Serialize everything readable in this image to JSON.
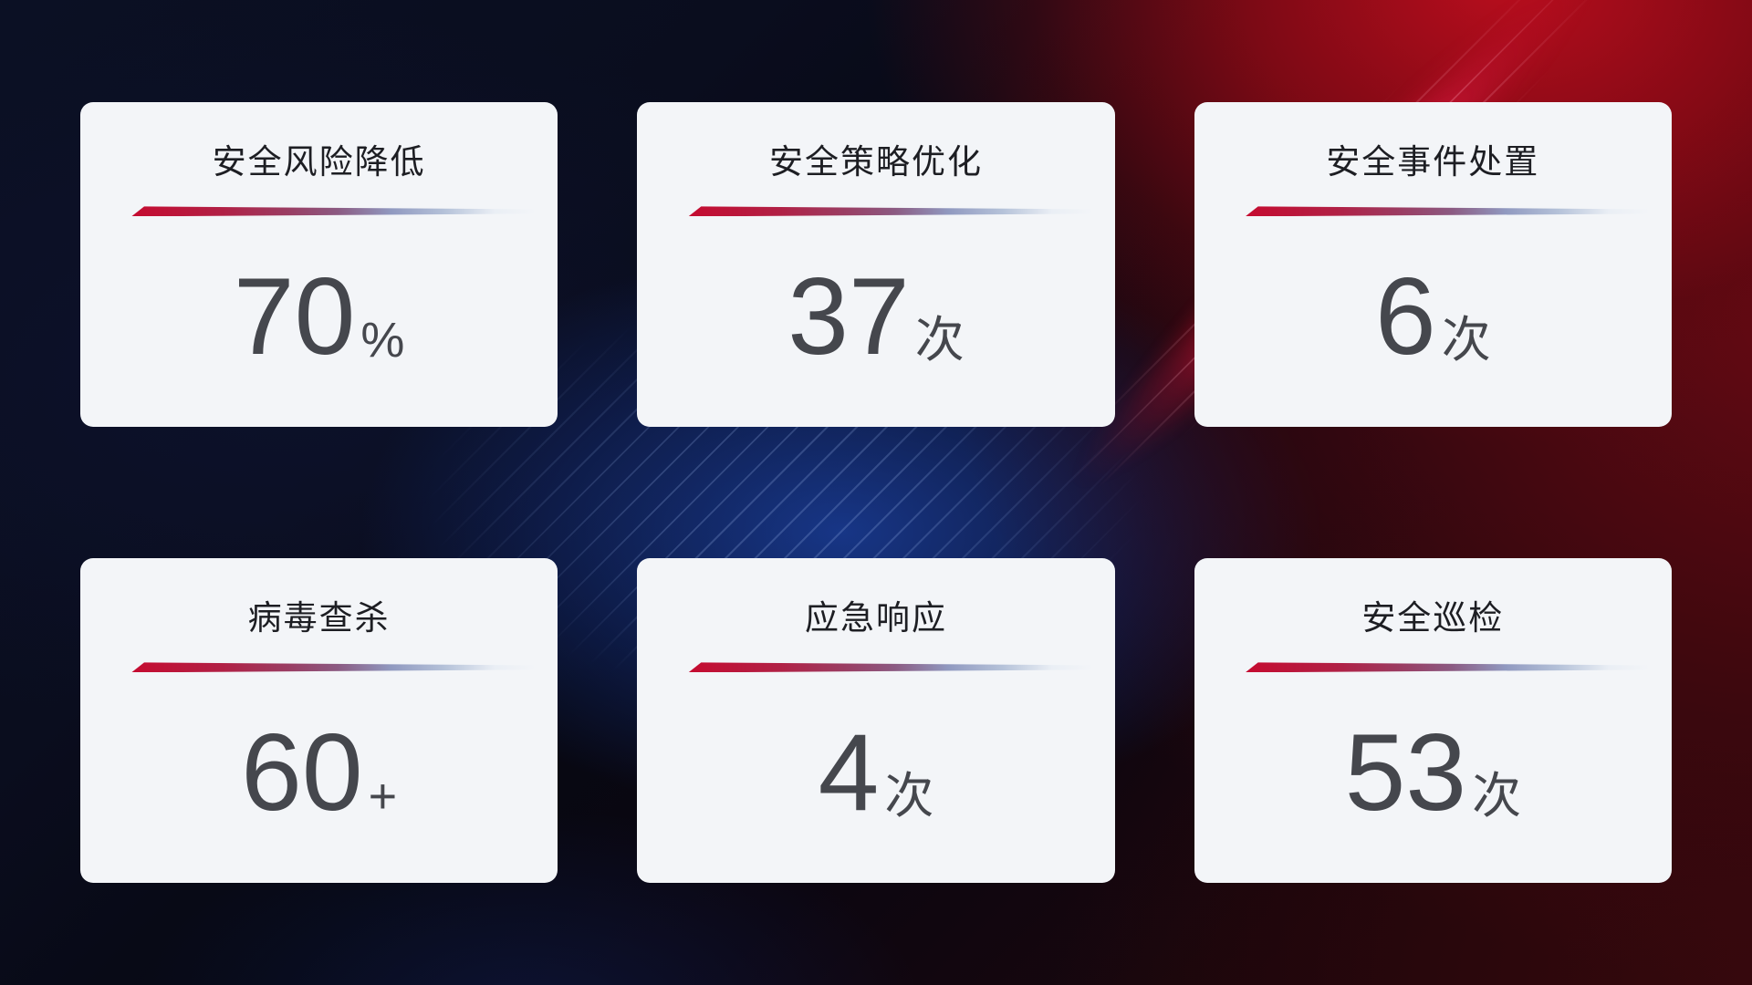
{
  "cards": [
    {
      "title": "安全风险降低",
      "value": "70",
      "unit": "%"
    },
    {
      "title": "安全策略优化",
      "value": "37",
      "unit": "次"
    },
    {
      "title": "安全事件处置",
      "value": "6",
      "unit": "次"
    },
    {
      "title": "病毒查杀",
      "value": "60",
      "unit": "+"
    },
    {
      "title": "应急响应",
      "value": "4",
      "unit": "次"
    },
    {
      "title": "安全巡检",
      "value": "53",
      "unit": "次"
    }
  ],
  "colors": {
    "card_background": "#f3f5f8",
    "title_text": "#1d1e23",
    "value_text": "#45474d",
    "divider_start": "#c50b30",
    "divider_end": "#b5c2d9",
    "background_navy": "#0b1024",
    "background_red": "#a00d1c",
    "background_blue_glow": "#1a3e9b"
  }
}
